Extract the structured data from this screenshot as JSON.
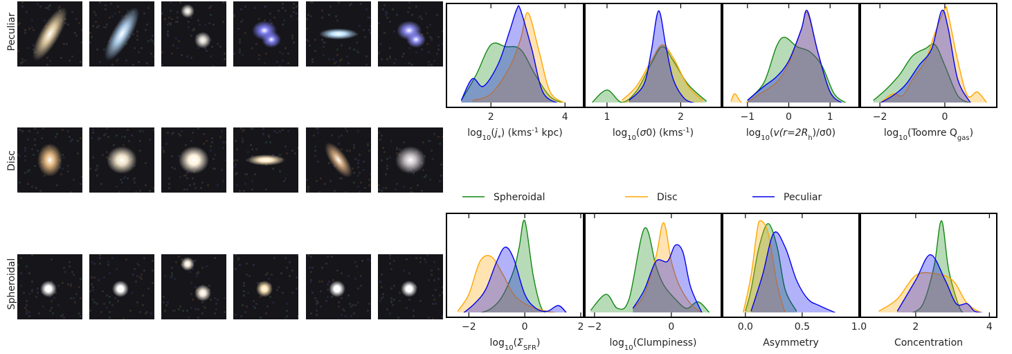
{
  "rows": {
    "peculiar": "Peculiar",
    "disc": "Disc",
    "spheroidal": "Spheroidal"
  },
  "colors": {
    "Spheroidal": "#118811",
    "Disc": "#FFA500",
    "Peculiar": "#0000EE"
  },
  "legend": [
    "Spheroidal",
    "Disc",
    "Peculiar"
  ],
  "thumbnails": {
    "peculiar": [
      {
        "shape": "elongated",
        "color": "#d8c39a"
      },
      {
        "shape": "elongated",
        "color": "#a9c9e6"
      },
      {
        "shape": "pair",
        "color": "#d9d4cc"
      },
      {
        "shape": "clumpy",
        "color": "#7c7cf0"
      },
      {
        "shape": "bar",
        "color": "#bfe3ff"
      },
      {
        "shape": "clumpy",
        "color": "#8c8cf5"
      }
    ],
    "disc": [
      {
        "shape": "oval",
        "color": "#e3b77f"
      },
      {
        "shape": "round",
        "color": "#efe2c8"
      },
      {
        "shape": "round",
        "color": "#fff2dc"
      },
      {
        "shape": "bar",
        "color": "#ffe9c2"
      },
      {
        "shape": "tilted",
        "color": "#c9a27a"
      },
      {
        "shape": "round",
        "color": "#c8c2c6"
      }
    ],
    "spheroidal": [
      {
        "shape": "compact",
        "color": "#ffffff"
      },
      {
        "shape": "compact",
        "color": "#ffffff"
      },
      {
        "shape": "pair",
        "color": "#f2e8d8"
      },
      {
        "shape": "compact",
        "color": "#ffe6b5"
      },
      {
        "shape": "compact",
        "color": "#ffffff"
      },
      {
        "shape": "compact",
        "color": "#ffffff"
      }
    ]
  },
  "chart_data": [
    {
      "type": "area",
      "xlabel": "log$_{10}$($j_{*}$) (kms$^{-1}$ kpc)",
      "xlim": [
        0.8,
        4.5
      ],
      "ticks": [
        2,
        4
      ],
      "tick_labels": [
        "2",
        "4"
      ],
      "series": [
        {
          "name": "Spheroidal",
          "x": [
            1.2,
            1.6,
            2.0,
            2.4,
            2.8,
            3.2,
            3.6,
            4.0
          ],
          "y": [
            0.03,
            0.3,
            0.62,
            0.6,
            0.57,
            0.3,
            0.07,
            0.0
          ]
        },
        {
          "name": "Disc",
          "x": [
            1.5,
            2.0,
            2.5,
            2.8,
            3.0,
            3.3,
            3.6,
            4.0
          ],
          "y": [
            0.03,
            0.1,
            0.38,
            0.68,
            0.96,
            0.55,
            0.12,
            0.0
          ]
        },
        {
          "name": "Peculiar",
          "x": [
            1.2,
            1.5,
            1.8,
            2.2,
            2.5,
            2.7,
            2.8,
            3.1,
            3.4,
            3.8
          ],
          "y": [
            0.03,
            0.26,
            0.18,
            0.42,
            0.76,
            1.0,
            0.99,
            0.58,
            0.12,
            0.0
          ]
        }
      ]
    },
    {
      "type": "area",
      "xlabel": "log$_{10}$($\\sigma_0$) (kms$^{-1}$)",
      "xlim": [
        0.7,
        2.55
      ],
      "ticks": [
        1,
        2
      ],
      "tick_labels": [
        "1",
        "2"
      ],
      "series": [
        {
          "name": "Spheroidal",
          "x": [
            0.8,
            1.0,
            1.2,
            1.4,
            1.6,
            1.75,
            1.9,
            2.1,
            2.35
          ],
          "y": [
            0.01,
            0.14,
            0.01,
            0.13,
            0.42,
            0.6,
            0.45,
            0.2,
            0.02
          ]
        },
        {
          "name": "Disc",
          "x": [
            1.2,
            1.4,
            1.6,
            1.75,
            1.9,
            2.1,
            2.3
          ],
          "y": [
            0.03,
            0.18,
            0.45,
            0.62,
            0.48,
            0.18,
            0.03
          ]
        },
        {
          "name": "Peculiar",
          "x": [
            1.3,
            1.5,
            1.6,
            1.7,
            1.8,
            1.9,
            2.05,
            2.2
          ],
          "y": [
            0.03,
            0.2,
            0.55,
            0.98,
            0.6,
            0.25,
            0.05,
            0.0
          ]
        }
      ]
    },
    {
      "type": "area",
      "xlabel": "log$_{10}$($v(r=2R_{\\rm h})/\\sigma_0$)",
      "xlim": [
        -1.6,
        1.7
      ],
      "ticks": [
        -1,
        0,
        1
      ],
      "tick_labels": [
        "−1",
        "0",
        "1"
      ],
      "series": [
        {
          "name": "Spheroidal",
          "x": [
            -1.0,
            -0.6,
            -0.3,
            -0.1,
            0.2,
            0.5,
            0.8,
            1.1,
            1.4
          ],
          "y": [
            0.03,
            0.22,
            0.6,
            0.7,
            0.6,
            0.55,
            0.4,
            0.1,
            0.0
          ]
        },
        {
          "name": "Disc",
          "x": [
            -1.4,
            -1.3,
            -1.1,
            -0.7,
            -0.3,
            0.0,
            0.3,
            0.45,
            0.7,
            1.0,
            1.3
          ],
          "y": [
            0.02,
            0.1,
            0.0,
            0.1,
            0.22,
            0.42,
            0.78,
            0.96,
            0.55,
            0.12,
            0.0
          ]
        },
        {
          "name": "Peculiar",
          "x": [
            -1.0,
            -0.6,
            -0.3,
            0.0,
            0.3,
            0.45,
            0.7,
            1.0,
            1.3
          ],
          "y": [
            0.03,
            0.18,
            0.28,
            0.45,
            0.78,
            0.98,
            0.55,
            0.12,
            0.0
          ]
        }
      ]
    },
    {
      "type": "area",
      "xlabel": "log$_{10}$(Toomre Q$_{\\rm gas}$)",
      "xlim": [
        -2.6,
        1.6
      ],
      "ticks": [
        -2,
        0
      ],
      "tick_labels": [
        "−2",
        "0"
      ],
      "series": [
        {
          "name": "Spheroidal",
          "x": [
            -2.2,
            -1.8,
            -1.4,
            -1.0,
            -0.6,
            -0.3,
            0.0,
            0.4,
            0.8
          ],
          "y": [
            0.03,
            0.15,
            0.3,
            0.5,
            0.58,
            0.62,
            0.4,
            0.08,
            0.0
          ]
        },
        {
          "name": "Disc",
          "x": [
            -2.0,
            -1.6,
            -1.3,
            -1.0,
            -0.6,
            -0.3,
            0.0,
            0.1,
            0.4,
            0.7,
            1.0,
            1.3
          ],
          "y": [
            0.0,
            0.1,
            0.08,
            0.25,
            0.45,
            0.75,
            1.0,
            0.95,
            0.45,
            0.08,
            0.12,
            0.0
          ]
        },
        {
          "name": "Peculiar",
          "x": [
            -2.0,
            -1.6,
            -1.2,
            -0.8,
            -0.4,
            -0.1,
            0.1,
            0.4,
            0.8
          ],
          "y": [
            0.0,
            0.08,
            0.2,
            0.4,
            0.58,
            0.98,
            0.8,
            0.25,
            0.0
          ]
        }
      ]
    },
    {
      "type": "area",
      "xlabel": "log$_{10}$($\\Sigma_{\\rm SFR}$)",
      "xlim": [
        -2.8,
        2.1
      ],
      "ticks": [
        -2,
        0,
        2
      ],
      "tick_labels": [
        "−2",
        "0",
        "2"
      ],
      "series": [
        {
          "name": "Spheroidal",
          "x": [
            -1.6,
            -1.2,
            -0.8,
            -0.4,
            -0.2,
            0.0,
            0.3,
            0.6,
            0.9
          ],
          "y": [
            0.0,
            0.05,
            0.18,
            0.45,
            0.7,
            0.98,
            0.4,
            0.05,
            0.0
          ]
        },
        {
          "name": "Disc",
          "x": [
            -2.4,
            -2.0,
            -1.6,
            -1.2,
            -0.8,
            -0.4,
            0.0,
            0.4,
            0.8,
            1.2
          ],
          "y": [
            0.02,
            0.2,
            0.55,
            0.6,
            0.42,
            0.2,
            0.1,
            0.05,
            0.02,
            0.0
          ]
        },
        {
          "name": "Peculiar",
          "x": [
            -2.2,
            -1.8,
            -1.4,
            -1.0,
            -0.7,
            -0.4,
            0.0,
            0.4,
            0.8,
            1.2,
            1.5
          ],
          "y": [
            0.0,
            0.1,
            0.25,
            0.55,
            0.7,
            0.58,
            0.2,
            0.05,
            0.02,
            0.08,
            0.0
          ]
        }
      ]
    },
    {
      "type": "area",
      "xlabel": "log$_{10}$(Clumpiness)",
      "xlim": [
        -2.25,
        1.3
      ],
      "ticks": [
        -2,
        0
      ],
      "tick_labels": [
        "−2",
        "0"
      ],
      "series": [
        {
          "name": "Spheroidal",
          "x": [
            -2.1,
            -1.7,
            -1.4,
            -1.1,
            -0.7,
            -0.4,
            -0.2,
            0.1,
            0.4,
            0.7,
            1.0
          ],
          "y": [
            0.03,
            0.2,
            0.05,
            0.15,
            0.9,
            0.5,
            0.3,
            0.15,
            0.05,
            0.12,
            0.0
          ]
        },
        {
          "name": "Disc",
          "x": [
            -1.0,
            -0.7,
            -0.4,
            -0.2,
            0.0,
            0.2,
            0.5,
            0.8
          ],
          "y": [
            0.05,
            0.2,
            0.6,
            0.96,
            0.55,
            0.3,
            0.1,
            0.0
          ]
        },
        {
          "name": "Peculiar",
          "x": [
            -1.0,
            -0.7,
            -0.4,
            -0.1,
            0.1,
            0.3,
            0.5,
            0.8
          ],
          "y": [
            0.05,
            0.25,
            0.55,
            0.55,
            0.72,
            0.65,
            0.28,
            0.0
          ]
        }
      ]
    },
    {
      "type": "area",
      "xlabel": "Asymmetry",
      "xlim": [
        -0.2,
        1.0
      ],
      "ticks": [
        0.0,
        0.5,
        1.0
      ],
      "tick_labels": [
        "0.0",
        "0.5",
        "1.0"
      ],
      "series": [
        {
          "name": "Spheroidal",
          "x": [
            0.0,
            0.05,
            0.12,
            0.2,
            0.28,
            0.35,
            0.45
          ],
          "y": [
            0.02,
            0.25,
            0.7,
            0.95,
            0.7,
            0.25,
            0.02
          ]
        },
        {
          "name": "Disc",
          "x": [
            -0.02,
            0.05,
            0.1,
            0.13,
            0.2,
            0.28,
            0.35
          ],
          "y": [
            0.0,
            0.4,
            0.85,
            0.98,
            0.85,
            0.3,
            0.0
          ]
        },
        {
          "name": "Peculiar",
          "x": [
            0.05,
            0.15,
            0.25,
            0.35,
            0.45,
            0.55,
            0.65,
            0.8
          ],
          "y": [
            0.02,
            0.4,
            0.85,
            0.7,
            0.35,
            0.15,
            0.08,
            0.0
          ]
        }
      ]
    },
    {
      "type": "area",
      "xlabel": "Concentration",
      "xlim": [
        0.5,
        4.2
      ],
      "ticks": [
        2,
        4
      ],
      "tick_labels": [
        "2",
        "4"
      ],
      "series": [
        {
          "name": "Spheroidal",
          "x": [
            1.9,
            2.2,
            2.5,
            2.7,
            2.9,
            3.2,
            3.4
          ],
          "y": [
            0.0,
            0.1,
            0.5,
            0.98,
            0.45,
            0.05,
            0.0
          ]
        },
        {
          "name": "Disc",
          "x": [
            1.0,
            1.5,
            2.0,
            2.5,
            3.0,
            3.4,
            3.8
          ],
          "y": [
            0.02,
            0.15,
            0.4,
            0.42,
            0.35,
            0.1,
            0.0
          ]
        },
        {
          "name": "Peculiar",
          "x": [
            1.5,
            2.0,
            2.4,
            2.8,
            3.1,
            3.4,
            3.6,
            3.9
          ],
          "y": [
            0.02,
            0.35,
            0.62,
            0.35,
            0.1,
            0.1,
            0.02,
            0.0
          ]
        }
      ]
    }
  ]
}
